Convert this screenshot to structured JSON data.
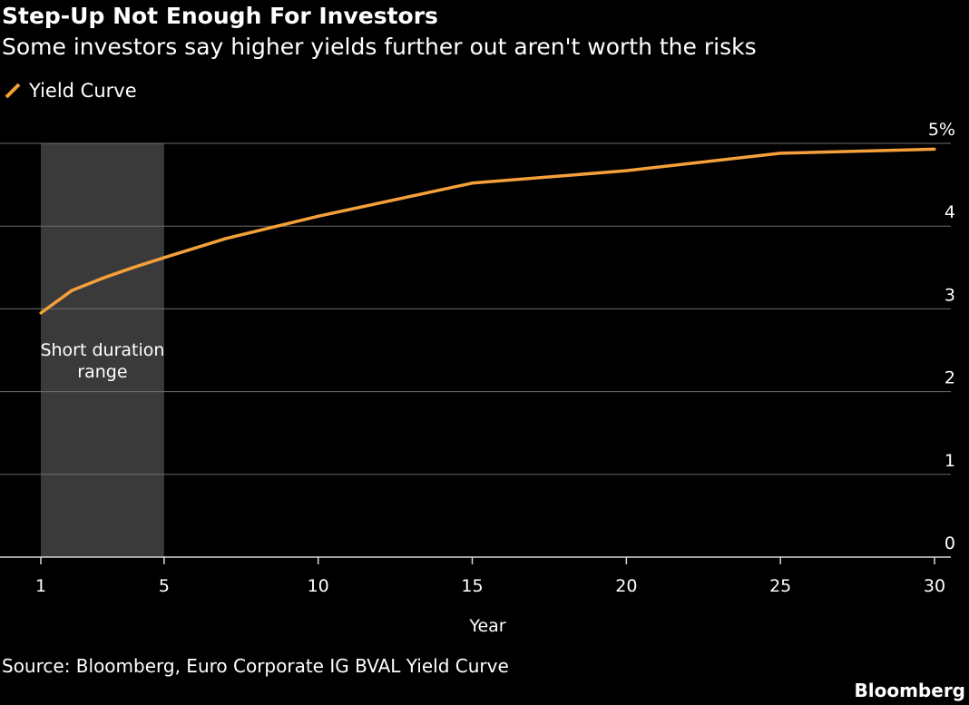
{
  "header": {
    "title": "Step-Up Not Enough For Investors",
    "subtitle": "Some investors say higher yields further out aren't worth the risks"
  },
  "legend": {
    "items": [
      {
        "label": "Yield Curve",
        "color": "#f5a03a",
        "icon": "line-swatch-icon"
      }
    ]
  },
  "footer": {
    "source": "Source: Bloomberg, Euro Corporate IG BVAL Yield Curve",
    "brand": "Bloomberg"
  },
  "chart_data": {
    "type": "line",
    "xlabel": "Year",
    "ylabel": "",
    "xlim": [
      1,
      30
    ],
    "ylim": [
      0,
      5
    ],
    "x_ticks": [
      1,
      5,
      10,
      15,
      20,
      25,
      30
    ],
    "y_ticks": [
      0,
      1,
      2,
      3,
      4,
      5
    ],
    "y_tick_labels": [
      "0",
      "1",
      "2",
      "3",
      "4",
      "5%"
    ],
    "grid": "horizontal",
    "y_axis_side": "right",
    "legend_position": "top-left",
    "series": [
      {
        "name": "Yield Curve",
        "color": "#f5a03a",
        "x": [
          1,
          2,
          3,
          4,
          5,
          7,
          10,
          15,
          20,
          25,
          30
        ],
        "y": [
          2.95,
          3.22,
          3.37,
          3.5,
          3.62,
          3.85,
          4.12,
          4.52,
          4.67,
          4.88,
          4.93
        ]
      }
    ],
    "shaded_region": {
      "x_start": 1,
      "x_end": 5,
      "color": "#3a3a3a",
      "label_lines": [
        "Short duration",
        "range"
      ]
    }
  }
}
